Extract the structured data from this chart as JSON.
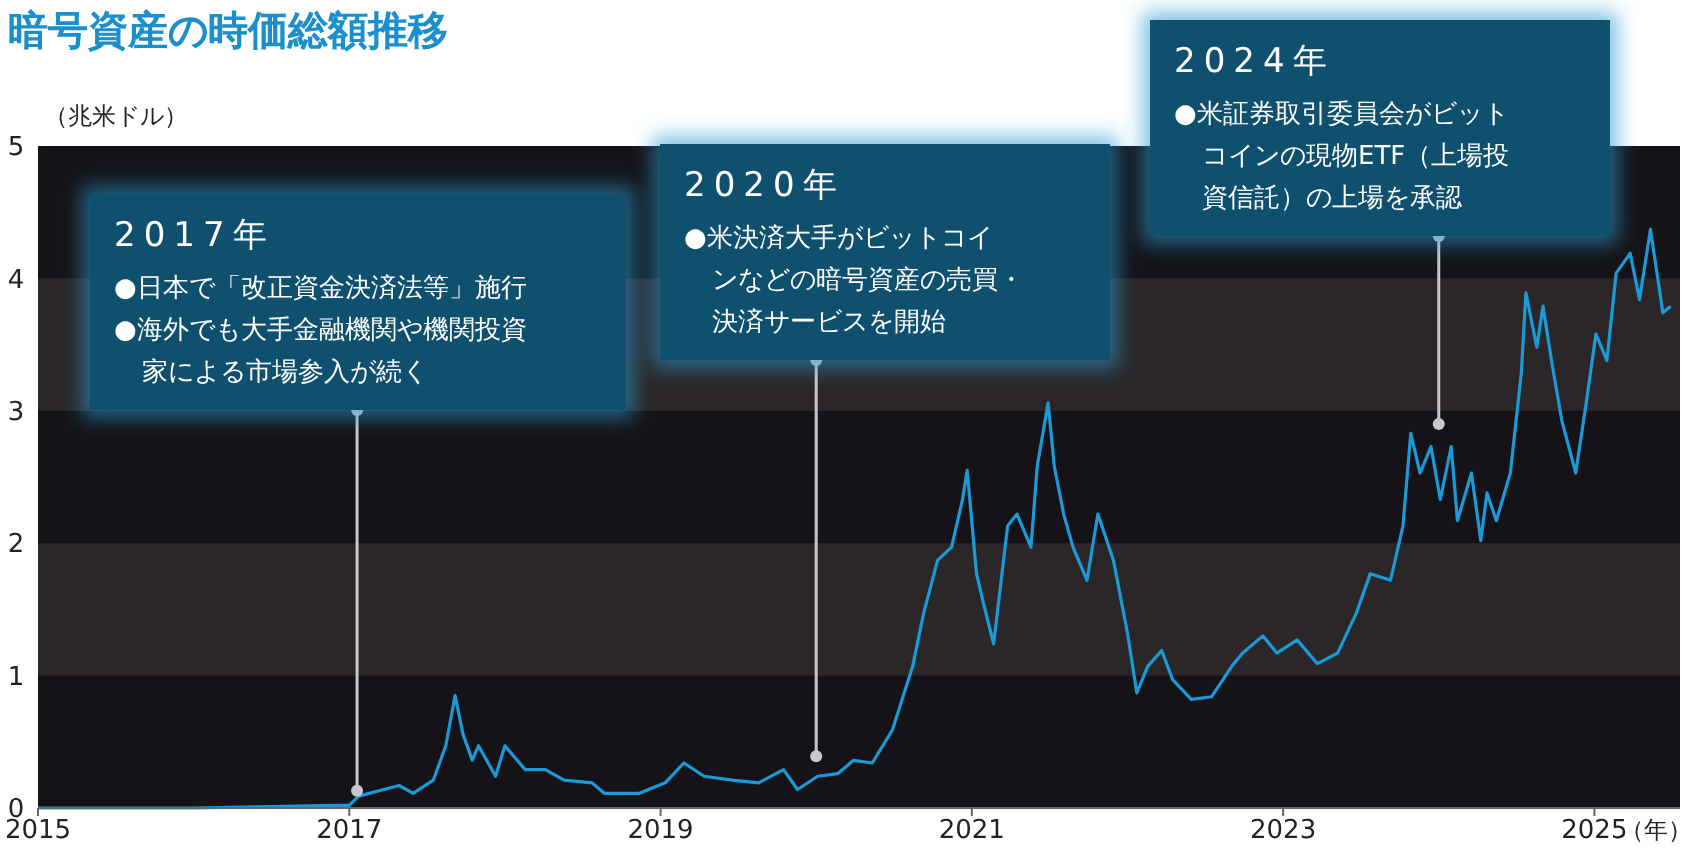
{
  "chart_data": {
    "type": "line",
    "title": "暗号資産の時価総額推移",
    "ylabel": "（兆米ドル）",
    "xlabel": "（年）",
    "xlim": [
      2015,
      2025.55
    ],
    "ylim": [
      0,
      5
    ],
    "xticks": [
      2015,
      2017,
      2019,
      2021,
      2023,
      2025
    ],
    "yticks": [
      0,
      1,
      2,
      3,
      4,
      5
    ],
    "grid": false,
    "bands": [
      {
        "axis": "y",
        "from": 1,
        "to": 2,
        "color": "#2b2728"
      },
      {
        "axis": "y",
        "from": 3,
        "to": 4,
        "color": "#2b2728"
      }
    ],
    "annotations": [
      {
        "text": "2017年\n●日本で「改正資金決済法等」施行\n●海外でも大手金融機関や機関投資家による市場参入が続く",
        "x": 2017.05,
        "y": 0.13
      },
      {
        "text": "2020年\n●米決済大手がビットコインなどの暗号資産の売買・決済サービスを開始",
        "x": 2020.0,
        "y": 0.39
      },
      {
        "text": "2024年\n●米証券取引委員会がビットコインの現物ETF（上場投資信託）の上場を承認",
        "x": 2024.0,
        "y": 2.9
      }
    ],
    "series": [
      {
        "color": "#1a9ad6",
        "x": [
          2015,
          2016,
          2016.5,
          2016.9,
          2017,
          2017.06,
          2017.32,
          2017.41,
          2017.54,
          2017.62,
          2017.68,
          2017.73,
          2017.79,
          2017.83,
          2017.94,
          2018.0,
          2018.13,
          2018.26,
          2018.38,
          2018.56,
          2018.64,
          2018.86,
          2019.03,
          2019.15,
          2019.28,
          2019.46,
          2019.63,
          2019.79,
          2019.88,
          2020.01,
          2020.14,
          2020.24,
          2020.36,
          2020.49,
          2020.62,
          2020.69,
          2020.78,
          2020.87,
          2020.94,
          2020.97,
          2021.03,
          2021.08,
          2021.14,
          2021.23,
          2021.29,
          2021.38,
          2021.42,
          2021.49,
          2021.53,
          2021.59,
          2021.65,
          2021.74,
          2021.81,
          2021.91,
          2022.0,
          2022.06,
          2022.13,
          2022.22,
          2022.29,
          2022.41,
          2022.54,
          2022.67,
          2022.74,
          2022.87,
          2022.96,
          2023.09,
          2023.22,
          2023.35,
          2023.47,
          2023.56,
          2023.69,
          2023.77,
          2023.82,
          2023.88,
          2023.95,
          2024.01,
          2024.08,
          2024.12,
          2024.21,
          2024.27,
          2024.31,
          2024.37,
          2024.46,
          2024.53,
          2024.56,
          2024.63,
          2024.67,
          2024.73,
          2024.79,
          2024.88,
          2024.95,
          2025.01,
          2025.08,
          2025.14,
          2025.23,
          2025.29,
          2025.36,
          2025.44,
          2025.49
        ],
        "values": [
          0.0,
          0.0,
          0.01,
          0.02,
          0.02,
          0.09,
          0.17,
          0.11,
          0.21,
          0.47,
          0.85,
          0.56,
          0.36,
          0.47,
          0.24,
          0.47,
          0.29,
          0.29,
          0.21,
          0.19,
          0.11,
          0.11,
          0.19,
          0.34,
          0.24,
          0.21,
          0.19,
          0.29,
          0.14,
          0.24,
          0.26,
          0.36,
          0.34,
          0.59,
          1.07,
          1.47,
          1.87,
          1.97,
          2.33,
          2.55,
          1.77,
          1.52,
          1.24,
          2.13,
          2.22,
          1.97,
          2.58,
          3.06,
          2.58,
          2.22,
          1.97,
          1.72,
          2.22,
          1.87,
          1.32,
          0.87,
          1.07,
          1.19,
          0.97,
          0.82,
          0.84,
          1.07,
          1.17,
          1.3,
          1.17,
          1.27,
          1.09,
          1.17,
          1.47,
          1.77,
          1.72,
          2.13,
          2.83,
          2.53,
          2.73,
          2.33,
          2.73,
          2.17,
          2.53,
          2.02,
          2.38,
          2.17,
          2.53,
          3.28,
          3.89,
          3.48,
          3.79,
          3.34,
          2.93,
          2.53,
          3.08,
          3.58,
          3.38,
          4.04,
          4.19,
          3.84,
          4.37,
          3.74,
          3.79
        ]
      }
    ]
  }
}
